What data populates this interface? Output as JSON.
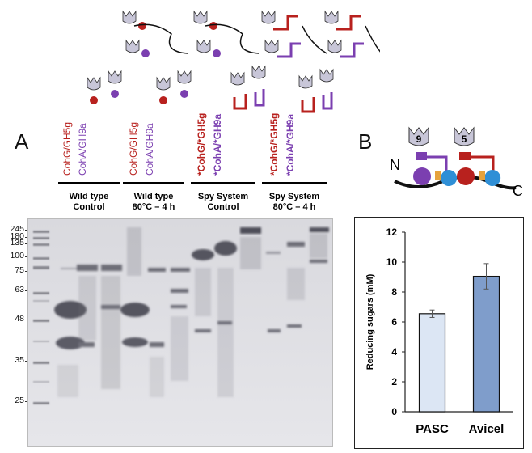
{
  "panel_a": {
    "letter": "A",
    "lane_labels": [
      {
        "text": "CohG/GH5g",
        "color": "red",
        "bold": false
      },
      {
        "text": "CohA/GH9a",
        "color": "purple",
        "bold": false
      },
      {
        "text": "CohG/GH5g",
        "color": "red",
        "bold": false
      },
      {
        "text": "CohA/GH9a",
        "color": "purple",
        "bold": false
      },
      {
        "text": "*CohG/*GH5g",
        "color": "red",
        "bold": true
      },
      {
        "text": "*CohA/*GH9a",
        "color": "purple",
        "bold": true
      },
      {
        "text": "*CohG/*GH5g",
        "color": "red",
        "bold": true
      },
      {
        "text": "*CohA/*GH9a",
        "color": "purple",
        "bold": true
      }
    ],
    "groups": [
      {
        "line1": "Wild type",
        "line2": "Control"
      },
      {
        "line1": "Wild type",
        "line2": "80°C – 4 h"
      },
      {
        "line1": "Spy System",
        "line2": "Control"
      },
      {
        "line1": "Spy System",
        "line2": "80°C – 4 h"
      }
    ],
    "mw_markers": [
      "245",
      "180",
      "135",
      "100",
      "75",
      "63",
      "48",
      "35",
      "25"
    ]
  },
  "panel_b": {
    "letter": "B",
    "n_label": "N",
    "c_label": "C",
    "module_numbers": [
      "9",
      "5"
    ]
  },
  "chart_data": {
    "type": "bar",
    "categories": [
      "PASC",
      "Avicel"
    ],
    "values": [
      6.55,
      9.05
    ],
    "errors": [
      0.25,
      0.85
    ],
    "colors": [
      "#dce6f4",
      "#7f9dcb"
    ],
    "xlabel": "",
    "ylabel": "Reducing sugars (mM)",
    "ylim": [
      0,
      12
    ],
    "yticks": [
      0,
      2,
      4,
      6,
      8,
      10,
      12
    ],
    "grid": false
  }
}
